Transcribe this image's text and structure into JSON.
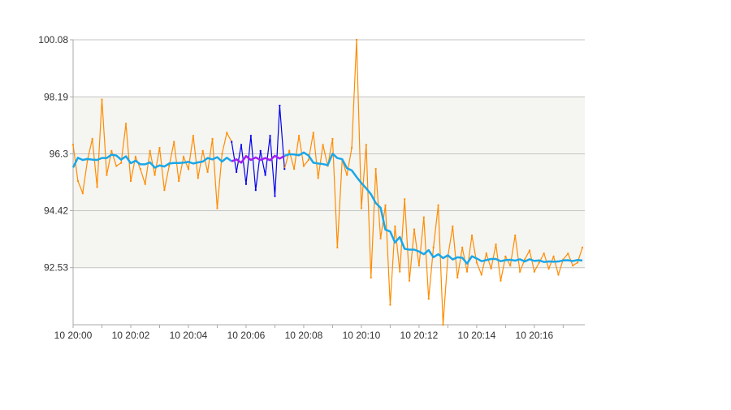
{
  "chart_data": {
    "type": "line",
    "title": "",
    "xlabel": "",
    "ylabel": "",
    "ylim": [
      90.64,
      100.08
    ],
    "y_ticks": [
      "100.08",
      "98.19",
      "96.3",
      "94.42",
      "92.53"
    ],
    "y_tick_values": [
      100.08,
      98.19,
      96.3,
      94.42,
      92.53
    ],
    "x_range_minutes": [
      0,
      17.75
    ],
    "x_tick_labels": [
      "10 20:00",
      "10 20:02",
      "10 20:04",
      "10 20:06",
      "10 20:08",
      "10 20:10",
      "10 20:12",
      "10 20:14",
      "10 20:16"
    ],
    "x_tick_minutes": [
      0,
      2,
      4,
      6,
      8,
      10,
      12,
      14,
      16
    ],
    "grid": true,
    "shaded_band": [
      92.53,
      98.19
    ],
    "series": [
      {
        "name": "values",
        "start_minute": 0,
        "interval_seconds": 10,
        "color": "#ff8c00",
        "highlight_color": "#0000ee",
        "highlight_index_range": [
          33,
          44
        ],
        "values": [
          96.6,
          95.4,
          95.0,
          96.1,
          96.8,
          95.2,
          98.1,
          95.6,
          96.4,
          95.9,
          96.0,
          97.3,
          95.4,
          96.2,
          95.8,
          95.3,
          96.4,
          95.6,
          96.5,
          95.1,
          95.9,
          96.7,
          95.4,
          96.2,
          95.8,
          96.9,
          95.5,
          96.4,
          95.7,
          96.8,
          94.5,
          96.3,
          97.0,
          96.7,
          95.7,
          96.6,
          95.3,
          96.9,
          95.1,
          96.4,
          95.6,
          96.9,
          94.9,
          97.9,
          95.8,
          96.4,
          95.8,
          96.9,
          95.9,
          96.1,
          97.0,
          95.5,
          96.6,
          95.9,
          96.8,
          93.2,
          96.1,
          95.6,
          96.5,
          100.08,
          94.5,
          96.6,
          92.2,
          95.8,
          93.5,
          94.6,
          91.3,
          93.9,
          92.4,
          94.8,
          92.1,
          93.8,
          92.6,
          94.2,
          91.5,
          93.2,
          94.6,
          90.64,
          92.9,
          93.9,
          92.2,
          93.2,
          92.4,
          93.6,
          92.7,
          92.3,
          93.0,
          92.5,
          93.3,
          92.1,
          92.9,
          92.6,
          93.6,
          92.4,
          92.8,
          93.1,
          92.4,
          92.7,
          93.0,
          92.5,
          92.9,
          92.3,
          92.8,
          93.0,
          92.6,
          92.7,
          93.2
        ]
      },
      {
        "name": "moving-average",
        "window": 11,
        "color": "#1aa7e8",
        "highlight_color": "#a020f0"
      }
    ]
  }
}
